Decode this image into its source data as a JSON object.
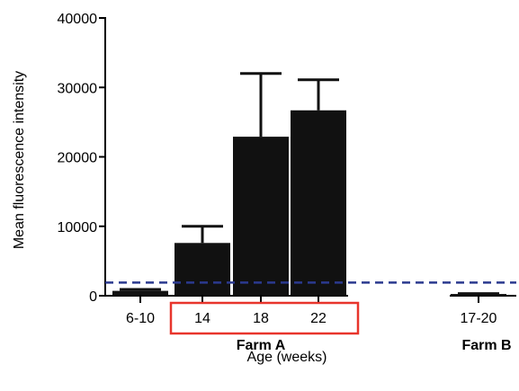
{
  "chart_data": {
    "type": "bar",
    "categories": [
      "6-10",
      "14",
      "18",
      "22",
      "17-20"
    ],
    "values": [
      700,
      7600,
      22900,
      26700,
      250
    ],
    "error_upper": [
      900,
      10000,
      32000,
      31100,
      300
    ],
    "groups": [
      {
        "label": "Farm A",
        "categories": [
          "14",
          "18",
          "22"
        ],
        "highlighted": true
      },
      {
        "label": "Farm B",
        "categories": [
          "17-20"
        ],
        "highlighted": false
      }
    ],
    "xlabel": "Age (weeks)",
    "ylabel": "Mean fluorescence intensity",
    "ylim": [
      0,
      40000
    ],
    "yticks": [
      0,
      10000,
      20000,
      30000,
      40000
    ],
    "ytick_labels": [
      "0",
      "10000",
      "20000",
      "30000",
      "40000"
    ],
    "threshold": 1900,
    "threshold_style": "dashed",
    "colors": {
      "bars": "#111111",
      "threshold": "#2b3a8f",
      "highlight_box": "#e8352c"
    },
    "grid": false,
    "legend": "none"
  }
}
